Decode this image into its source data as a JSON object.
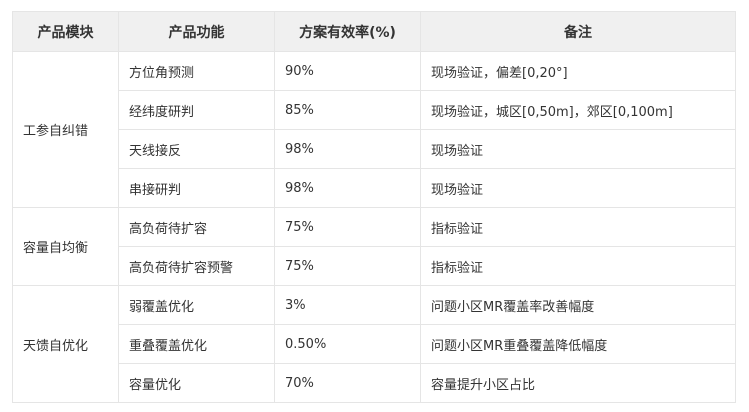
{
  "headers": [
    "产品模块",
    "产品功能",
    "方案有效率(%)",
    "备注"
  ],
  "groups": [
    {
      "module": "工参自纠错",
      "rows": [
        {
          "func": "方位角预测",
          "rate": "90%",
          "note": "现场验证，偏差[0,20°]"
        },
        {
          "func": "经纬度研判",
          "rate": "85%",
          "note": "现场验证，城区[0,50m]，郊区[0,100m]"
        },
        {
          "func": "天线接反",
          "rate": "98%",
          "note": "现场验证"
        },
        {
          "func": "串接研判",
          "rate": "98%",
          "note": "现场验证"
        }
      ]
    },
    {
      "module": "容量自均衡",
      "rows": [
        {
          "func": "高负荷待扩容",
          "rate": "75%",
          "note": "指标验证"
        },
        {
          "func": "高负荷待扩容预警",
          "rate": "75%",
          "note": "指标验证"
        }
      ]
    },
    {
      "module": "天馈自优化",
      "rows": [
        {
          "func": "弱覆盖优化",
          "rate": "3%",
          "note": "问题小区MR覆盖率改善幅度"
        },
        {
          "func": "重叠覆盖优化",
          "rate": "0.50%",
          "note": "问题小区MR重叠覆盖降低幅度"
        },
        {
          "func": "容量优化",
          "rate": "70%",
          "note": "容量提升小区占比"
        }
      ]
    }
  ]
}
